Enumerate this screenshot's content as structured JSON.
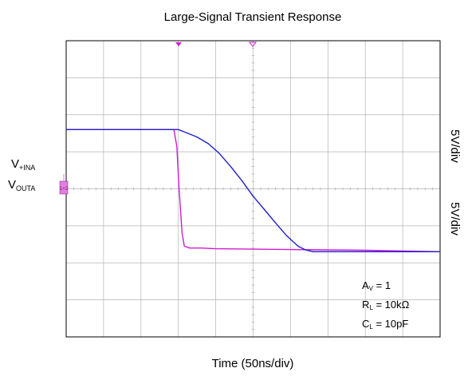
{
  "chart_data": {
    "type": "line",
    "title": "Large-Signal Transient Response",
    "xlabel": "Time (50ns/div)",
    "ylabel_right_1": "5V/div",
    "ylabel_right_2": "5V/div",
    "xlim": [
      0,
      10
    ],
    "ylim": [
      -4,
      4
    ],
    "grid": true,
    "series": [
      {
        "name_main": "V",
        "name_sub": "+INA",
        "color": "#1f1fcc",
        "x": [
          0,
          3.0,
          3.2,
          3.5,
          3.8,
          4.1,
          4.4,
          4.7,
          5.0,
          5.3,
          5.6,
          5.9,
          6.2,
          6.4,
          6.6,
          10
        ],
        "y": [
          1.6,
          1.6,
          1.52,
          1.4,
          1.22,
          0.95,
          0.6,
          0.22,
          -0.2,
          -0.56,
          -0.92,
          -1.27,
          -1.55,
          -1.65,
          -1.7,
          -1.7
        ]
      },
      {
        "name_main": "V",
        "name_sub": "OUTA",
        "color": "#d21bd2",
        "x": [
          0,
          2.88,
          2.96,
          3.02,
          3.1,
          3.16,
          3.3,
          3.6,
          4.0,
          6.0,
          8.0,
          10
        ],
        "y": [
          1.6,
          1.6,
          1.15,
          0.0,
          -1.2,
          -1.55,
          -1.6,
          -1.6,
          -1.62,
          -1.64,
          -1.66,
          -1.7
        ]
      }
    ],
    "annotations": [
      {
        "main": "A",
        "sub": "V",
        "rest": " = 1"
      },
      {
        "main": "R",
        "sub": "L",
        "rest": " = 10kΩ"
      },
      {
        "main": "C",
        "sub": "L",
        "rest": " = 10pF"
      }
    ],
    "ground_marker": "1+2",
    "colors": {
      "blue_trace": "#1f1fcc",
      "magenta_trace": "#d21bd2",
      "grid": "#b4b4b4"
    }
  }
}
